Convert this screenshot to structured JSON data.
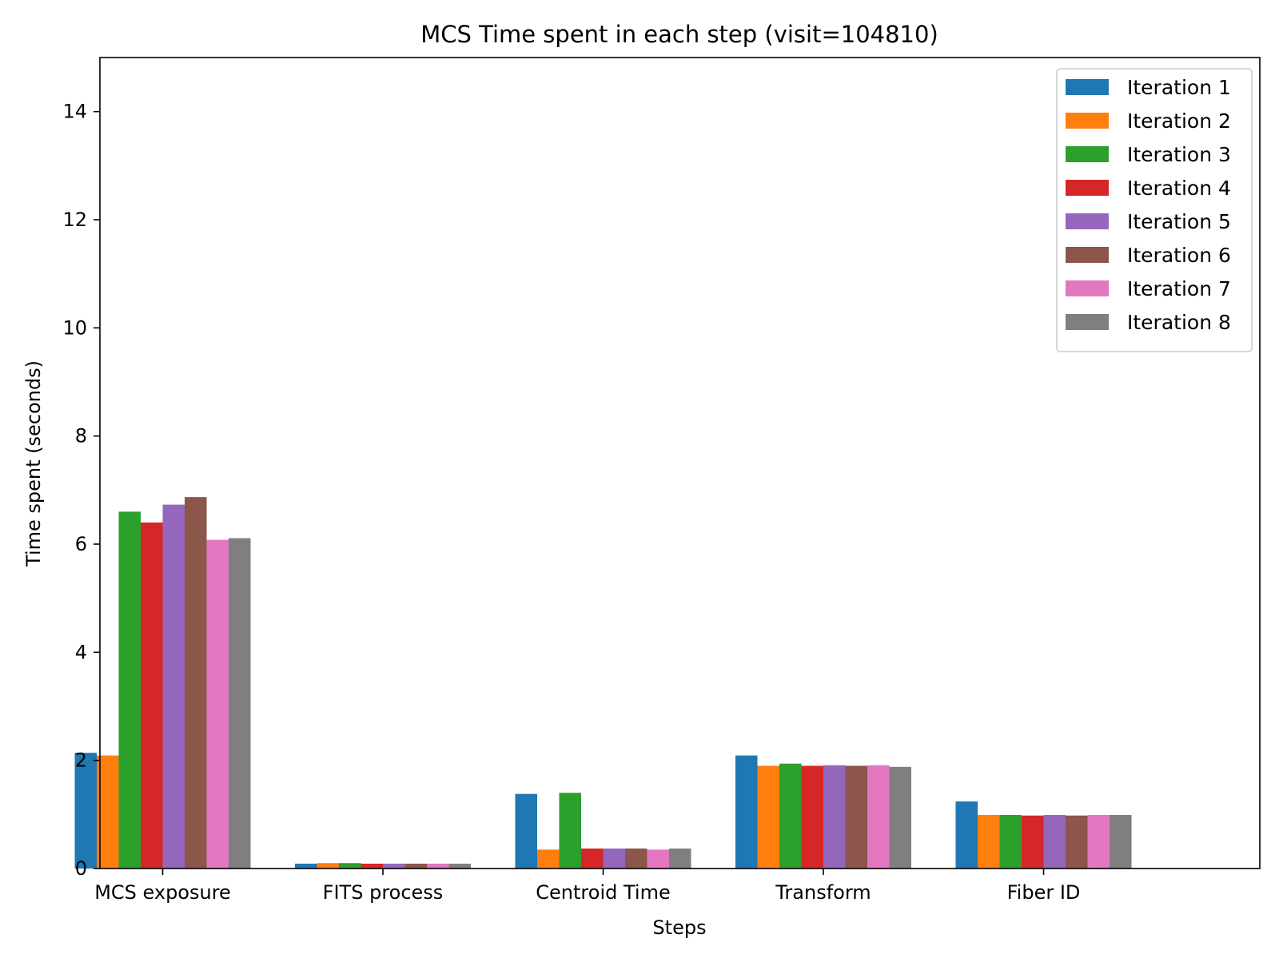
{
  "chart_data": {
    "type": "bar",
    "title": "MCS Time spent in each step (visit=104810)",
    "xlabel": "Steps",
    "ylabel": "Time spent (seconds)",
    "ylim": [
      0,
      15
    ],
    "yticks": [
      0,
      2,
      4,
      6,
      8,
      10,
      12,
      14
    ],
    "ytick_labels": [
      "0",
      "2",
      "4",
      "6",
      "8",
      "10",
      "12",
      "14"
    ],
    "grid": false,
    "legend_position": "top-right",
    "categories": [
      "MCS exposure",
      "FITS process",
      "Centroid Time",
      "Transform",
      "Fiber ID"
    ],
    "series": [
      {
        "name": "Iteration 1",
        "color": "#1f77b4",
        "values": [
          2.14,
          0.09,
          1.38,
          2.09,
          1.24
        ]
      },
      {
        "name": "Iteration 2",
        "color": "#ff7f0e",
        "values": [
          2.09,
          0.1,
          0.35,
          1.9,
          0.99
        ]
      },
      {
        "name": "Iteration 3",
        "color": "#2ca02c",
        "values": [
          6.6,
          0.1,
          1.4,
          1.94,
          0.99
        ]
      },
      {
        "name": "Iteration 4",
        "color": "#d62728",
        "values": [
          6.4,
          0.09,
          0.37,
          1.9,
          0.98
        ]
      },
      {
        "name": "Iteration 5",
        "color": "#9467bd",
        "values": [
          6.73,
          0.09,
          0.37,
          1.91,
          0.99
        ]
      },
      {
        "name": "Iteration 6",
        "color": "#8c564b",
        "values": [
          6.87,
          0.09,
          0.37,
          1.9,
          0.98
        ]
      },
      {
        "name": "Iteration 7",
        "color": "#e377c2",
        "values": [
          6.08,
          0.09,
          0.35,
          1.91,
          0.99
        ]
      },
      {
        "name": "Iteration 8",
        "color": "#7f7f7f",
        "values": [
          6.11,
          0.09,
          0.37,
          1.88,
          0.99
        ]
      }
    ]
  }
}
